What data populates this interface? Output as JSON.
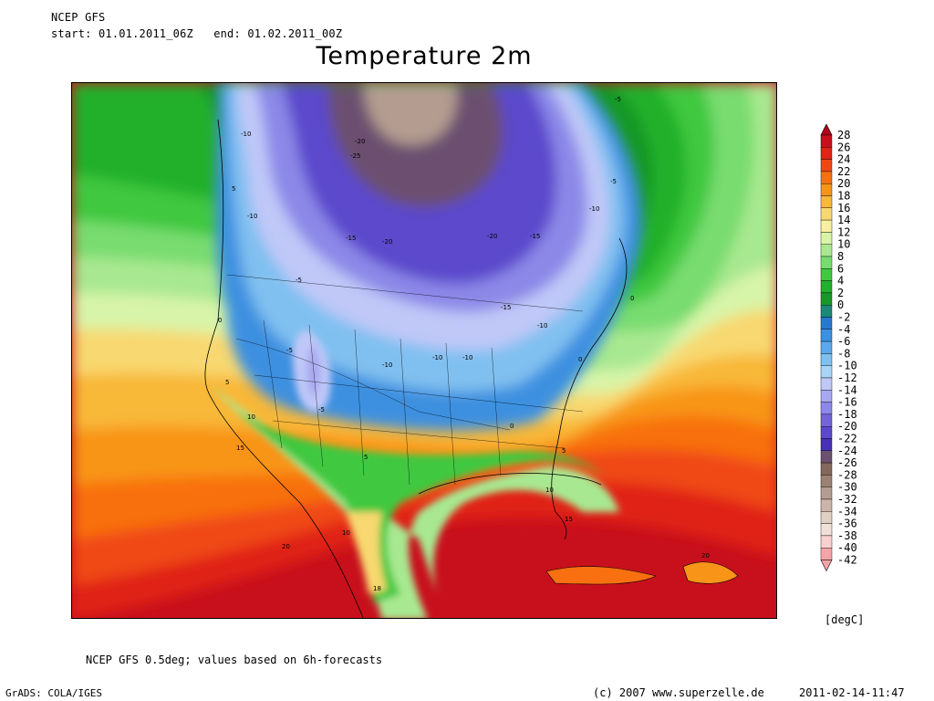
{
  "header": {
    "model": "NCEP GFS",
    "period": "start: 01.01.2011_06Z   end: 01.02.2011_00Z",
    "title": "Temperature 2m"
  },
  "colorbar": {
    "units": "[degC]",
    "ticks": [
      "28",
      "26",
      "24",
      "22",
      "20",
      "18",
      "16",
      "14",
      "12",
      "10",
      "8",
      "6",
      "4",
      "2",
      "0",
      "-2",
      "-4",
      "-6",
      "-8",
      "-10",
      "-12",
      "-14",
      "-16",
      "-18",
      "-20",
      "-22",
      "-24",
      "-26",
      "-28",
      "-30",
      "-32",
      "-34",
      "-36",
      "-38",
      "-40",
      "-42"
    ],
    "colors": [
      "#b0001c",
      "#c8101c",
      "#e02418",
      "#f04814",
      "#f87010",
      "#f89418",
      "#f8b838",
      "#f8d870",
      "#f8f0a0",
      "#d8f4a8",
      "#a8e890",
      "#78dc70",
      "#40c840",
      "#20b02c",
      "#189828",
      "#1c8878",
      "#2878d0",
      "#3c90e0",
      "#5ca8ec",
      "#80c0f0",
      "#a8d4f8",
      "#c0c8f8",
      "#a8a8f0",
      "#8c88e8",
      "#7464dc",
      "#5c48cc",
      "#4830b8",
      "#6c5070",
      "#84685c",
      "#9c8274",
      "#b49c90",
      "#ccb4a8",
      "#e0d0c4",
      "#f0e0d8",
      "#f8d0d0",
      "#f4a4a8"
    ]
  },
  "map": {
    "contour_labels": [
      "-20",
      "-10",
      "-5",
      "-25",
      "-15",
      "-20",
      "-10",
      "-15",
      "-20",
      "-10",
      "-10",
      "-5",
      "0",
      "5",
      "5",
      "10",
      "15",
      "-5",
      "-10",
      "0",
      "-15",
      "-5",
      "-10",
      "-5",
      "-10",
      "0",
      "5",
      "5",
      "10",
      "15",
      "10",
      "20",
      "18",
      "20",
      "0"
    ]
  },
  "footer": {
    "note": "NCEP GFS 0.5deg; values based on 6h-forecasts",
    "software": "GrADS: COLA/IGES",
    "copyright": "(c) 2007 www.superzelle.de",
    "timestamp": "2011-02-14-11:47"
  }
}
